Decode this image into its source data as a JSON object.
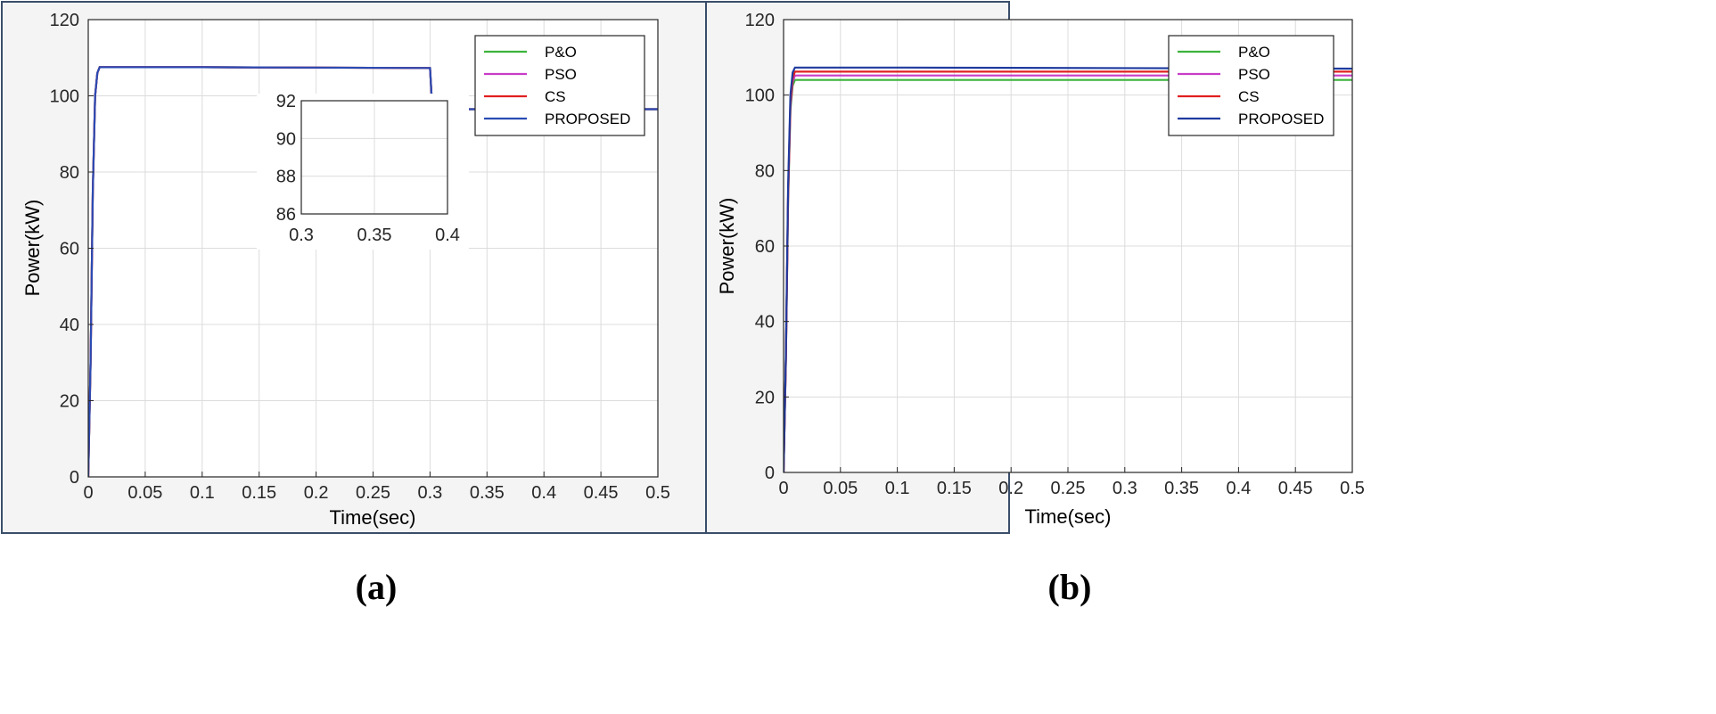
{
  "chart_data": [
    {
      "type": "line",
      "panel_label": "(a)",
      "xlabel": "Time(sec)",
      "ylabel": "Power(kW)",
      "xlim": [
        0,
        0.5
      ],
      "ylim": [
        0,
        120
      ],
      "xticks": [
        0,
        0.05,
        0.1,
        0.15,
        0.2,
        0.25,
        0.3,
        0.35,
        0.4,
        0.45,
        0.5
      ],
      "yticks": [
        0,
        20,
        40,
        60,
        80,
        100,
        120
      ],
      "grid": true,
      "legend_position": "top-right",
      "series": [
        {
          "name": "P&O",
          "color": "#3cb43c",
          "x": [
            0,
            0.002,
            0.004,
            0.006,
            0.008,
            0.01,
            0.1,
            0.3,
            0.302,
            0.5
          ],
          "y": [
            0,
            30,
            75,
            100,
            106,
            107.5,
            107.5,
            107.3,
            96.5,
            96.5
          ]
        },
        {
          "name": "PSO",
          "color": "#c83cc8",
          "x": [
            0,
            0.002,
            0.004,
            0.006,
            0.008,
            0.01,
            0.1,
            0.3,
            0.302,
            0.5
          ],
          "y": [
            0,
            30,
            75,
            100,
            106,
            107.5,
            107.5,
            107.3,
            96.5,
            96.5
          ]
        },
        {
          "name": "CS",
          "color": "#e02020",
          "x": [
            0,
            0.002,
            0.004,
            0.006,
            0.008,
            0.01,
            0.1,
            0.3,
            0.302,
            0.5
          ],
          "y": [
            0,
            30,
            75,
            100,
            106,
            107.5,
            107.5,
            107.3,
            96.5,
            96.5
          ]
        },
        {
          "name": "PROPOSED",
          "color": "#2a4bb4",
          "x": [
            0,
            0.002,
            0.004,
            0.006,
            0.008,
            0.01,
            0.1,
            0.3,
            0.302,
            0.5
          ],
          "y": [
            0,
            30,
            75,
            100,
            106,
            107.5,
            107.5,
            107.3,
            96.5,
            96.5
          ]
        }
      ],
      "inset": {
        "xlim": [
          0.3,
          0.4
        ],
        "ylim": [
          86,
          92
        ],
        "xticks": [
          0.3,
          0.35,
          0.4
        ],
        "xtick_labels": [
          "0.3",
          "0.35",
          "0.4"
        ],
        "yticks": [
          86,
          88,
          90,
          92
        ],
        "grid": true
      }
    },
    {
      "type": "line",
      "panel_label": "(b)",
      "xlabel": "Time(sec)",
      "ylabel": "Power(kW)",
      "xlim": [
        0,
        0.5
      ],
      "ylim": [
        0,
        120
      ],
      "xticks": [
        0,
        0.05,
        0.1,
        0.15,
        0.2,
        0.25,
        0.3,
        0.35,
        0.4,
        0.45,
        0.5
      ],
      "yticks": [
        0,
        20,
        40,
        60,
        80,
        100,
        120
      ],
      "grid": true,
      "legend_position": "top-right",
      "series": [
        {
          "name": "P&O",
          "color": "#3cb43c",
          "x": [
            0,
            0.002,
            0.004,
            0.006,
            0.008,
            0.01,
            0.5
          ],
          "y": [
            0,
            30,
            72,
            96,
            102.5,
            104,
            104
          ]
        },
        {
          "name": "PSO",
          "color": "#c83cc8",
          "x": [
            0,
            0.002,
            0.004,
            0.006,
            0.008,
            0.01,
            0.5
          ],
          "y": [
            0,
            30,
            73,
            97,
            103.5,
            105.2,
            105.2
          ]
        },
        {
          "name": "CS",
          "color": "#e02020",
          "x": [
            0,
            0.002,
            0.004,
            0.006,
            0.008,
            0.01,
            0.5
          ],
          "y": [
            0,
            30,
            74,
            98,
            104.5,
            106.2,
            106.2
          ]
        },
        {
          "name": "PROPOSED",
          "color": "#1f3a9e",
          "x": [
            0,
            0.002,
            0.004,
            0.006,
            0.008,
            0.01,
            0.1,
            0.5
          ],
          "y": [
            0,
            31,
            76,
            100,
            106,
            107.3,
            107.3,
            107
          ]
        }
      ]
    }
  ]
}
